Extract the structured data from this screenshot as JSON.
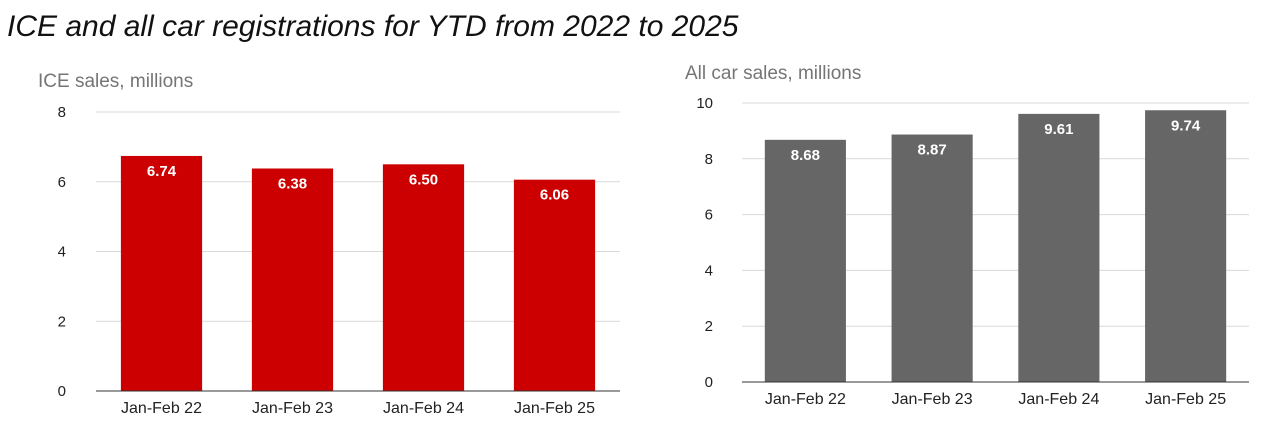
{
  "title": "ICE and all car registrations for YTD from 2022 to 2025",
  "chart_data": [
    {
      "type": "bar",
      "ylabel": "ICE sales, millions",
      "xlabel": "",
      "categories": [
        "Jan-Feb 22",
        "Jan-Feb 23",
        "Jan-Feb 24",
        "Jan-Feb 25"
      ],
      "values": [
        6.74,
        6.38,
        6.5,
        6.06
      ],
      "data_labels": [
        "6.74",
        "6.38",
        "6.50",
        "6.06"
      ],
      "ylim": [
        0,
        8
      ],
      "yticks": [
        0,
        2,
        4,
        6,
        8
      ],
      "color": "#cc0000",
      "grid": true,
      "legend": "none"
    },
    {
      "type": "bar",
      "ylabel": "All car sales, millions",
      "xlabel": "",
      "categories": [
        "Jan-Feb 22",
        "Jan-Feb 23",
        "Jan-Feb 24",
        "Jan-Feb 25"
      ],
      "values": [
        8.68,
        8.87,
        9.61,
        9.74
      ],
      "data_labels": [
        "8.68",
        "8.87",
        "9.61",
        "9.74"
      ],
      "ylim": [
        0,
        10
      ],
      "yticks": [
        0,
        2,
        4,
        6,
        8,
        10
      ],
      "color": "#666666",
      "grid": true,
      "legend": "none"
    }
  ]
}
